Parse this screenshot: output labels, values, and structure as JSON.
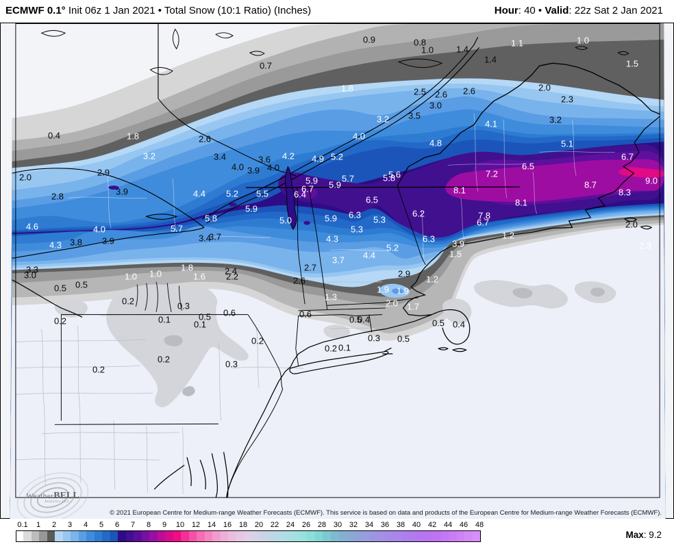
{
  "header": {
    "title_model": "ECMWF 0.1°",
    "title_rest": " Init 06z 1 Jan 2021 • Total Snow (10:1 Ratio) (Inches)",
    "hour_label": "Hour",
    "hour_value": ": 40",
    "sep": " • ",
    "valid_label": "Valid",
    "valid_value": ": 22z Sat 2 Jan 2021"
  },
  "footer": {
    "copyright": "© 2021 European Centre for Medium-range Weather Forecasts (ECMWF). This service is based on data and products of the European Centre for Medium-range Weather Forecasts (ECMWF)."
  },
  "logo": {
    "part1": "Weather",
    "part2": "BELL",
    "sub": "Analytics LLC"
  },
  "colorbar": {
    "max_label": "Max",
    "max_value": ": 9.2",
    "ticks": [
      "0.1",
      "1",
      "2",
      "3",
      "4",
      "5",
      "6",
      "7",
      "8",
      "9",
      "10",
      "12",
      "14",
      "16",
      "18",
      "20",
      "22",
      "24",
      "26",
      "28",
      "30",
      "32",
      "34",
      "36",
      "38",
      "40",
      "42",
      "44",
      "46",
      "48"
    ],
    "start_color": "#ffffff",
    "segments": [
      [
        "#dcdcdc",
        "#bdbdbd"
      ],
      [
        "#979797",
        "#5b5b5b"
      ],
      [
        "#b3d6f5",
        "#97c6f0"
      ],
      [
        "#7ab4ec",
        "#599de4"
      ],
      [
        "#3f8cdc",
        "#2e7cd2"
      ],
      [
        "#2269c8",
        "#1b55ba"
      ],
      [
        "#2d0c86",
        "#430e90"
      ],
      [
        "#5a0f9c",
        "#7810a4"
      ],
      [
        "#9a0ea6",
        "#bc0c98"
      ],
      [
        "#da0b8b",
        "#f00e83"
      ],
      [
        "#f62e97",
        "#f650a6"
      ],
      [
        "#f66cb5",
        "#f585c2"
      ],
      [
        "#f29ccd",
        "#efaed7"
      ],
      [
        "#ebbddf",
        "#e6c8e3"
      ],
      [
        "#dfd0e7",
        "#d5d3e8"
      ],
      [
        "#cad4e7",
        "#c0d7e7"
      ],
      [
        "#b6dbe7",
        "#addee5"
      ],
      [
        "#a3e0e2",
        "#97e1df"
      ],
      [
        "#8bdeda",
        "#80d6d5"
      ],
      [
        "#7cc9d1",
        "#7cbcd0"
      ],
      [
        "#83b1d2",
        "#8aaad6"
      ],
      [
        "#91a2da",
        "#979cde"
      ],
      [
        "#9d95e2",
        "#a28fe6"
      ],
      [
        "#a789ea",
        "#ab84ec"
      ],
      [
        "#af7eee",
        "#b37af0"
      ],
      [
        "#b775f1",
        "#bb72f2"
      ],
      [
        "#c073f4",
        "#c577f5"
      ],
      [
        "#ca7cf6",
        "#cf82f7"
      ],
      [
        "#d489f8",
        "#d98ff9"
      ]
    ]
  },
  "map": {
    "labels": [
      [
        "0.4",
        78,
        197,
        "b"
      ],
      [
        "0.7",
        387,
        95,
        "b"
      ],
      [
        "0.9",
        538,
        57,
        "b"
      ],
      [
        "0.8",
        612,
        61,
        "b"
      ],
      [
        "1.0",
        623,
        72,
        "b"
      ],
      [
        "1.4",
        674,
        71,
        "b"
      ],
      [
        "1.1",
        754,
        62,
        "w"
      ],
      [
        "1.0",
        850,
        58,
        "w"
      ],
      [
        "1.4",
        715,
        86,
        "b"
      ],
      [
        "1.5",
        922,
        92,
        "w"
      ],
      [
        "1.8",
        193,
        198,
        "w"
      ],
      [
        "1.8",
        506,
        128,
        "w"
      ],
      [
        "2.6",
        298,
        202,
        "b"
      ],
      [
        "2.5",
        612,
        133,
        "b"
      ],
      [
        "2.6",
        643,
        137,
        "b"
      ],
      [
        "3.0",
        635,
        153,
        "b"
      ],
      [
        "3.5",
        604,
        168,
        "b"
      ],
      [
        "3.2",
        558,
        173,
        "w"
      ],
      [
        "2.6",
        684,
        132,
        "b"
      ],
      [
        "2.0",
        794,
        127,
        "b"
      ],
      [
        "2.3",
        827,
        144,
        "b"
      ],
      [
        "3.2",
        810,
        174,
        "b"
      ],
      [
        "3.2",
        217,
        227,
        "w"
      ],
      [
        "3.4",
        320,
        228,
        "b"
      ],
      [
        "2.9",
        150,
        251,
        "b"
      ],
      [
        "2.0",
        36,
        258,
        "b"
      ],
      [
        "2.8",
        83,
        286,
        "b"
      ],
      [
        "3.9",
        177,
        279,
        "b"
      ],
      [
        "3.6",
        385,
        232,
        "b"
      ],
      [
        "4.0",
        346,
        243,
        "b"
      ],
      [
        "3.9",
        369,
        248,
        "b"
      ],
      [
        "4.0",
        398,
        244,
        "b"
      ],
      [
        "4.2",
        420,
        227,
        "w"
      ],
      [
        "4.9",
        463,
        231,
        "w"
      ],
      [
        "5.2",
        491,
        228,
        "w"
      ],
      [
        "4.0",
        523,
        198,
        "w"
      ],
      [
        "4.8",
        635,
        208,
        "w"
      ],
      [
        "4.1",
        716,
        180,
        "w"
      ],
      [
        "5.1",
        827,
        209,
        "w"
      ],
      [
        "6.7",
        915,
        228,
        "w"
      ],
      [
        "4.4",
        290,
        282,
        "w"
      ],
      [
        "4.6",
        46,
        330,
        "w"
      ],
      [
        "4.0",
        144,
        334,
        "w"
      ],
      [
        "5.7",
        257,
        333,
        "w"
      ],
      [
        "5.8",
        307,
        318,
        "w"
      ],
      [
        "5.2",
        338,
        282,
        "w"
      ],
      [
        "5.5",
        382,
        282,
        "w"
      ],
      [
        "5.9",
        366,
        304,
        "w"
      ],
      [
        "5.0",
        416,
        321,
        "w"
      ],
      [
        "5.9",
        454,
        263,
        "w"
      ],
      [
        "6.7",
        448,
        275,
        "w"
      ],
      [
        "6.4",
        437,
        283,
        "w"
      ],
      [
        "5.9",
        488,
        269,
        "w"
      ],
      [
        "5.7",
        507,
        260,
        "w"
      ],
      [
        "5.6",
        575,
        254,
        "w"
      ],
      [
        "5.8",
        567,
        259,
        "w"
      ],
      [
        "6.5",
        542,
        291,
        "w"
      ],
      [
        "6.3",
        517,
        313,
        "w"
      ],
      [
        "5.9",
        482,
        318,
        "w"
      ],
      [
        "5.3",
        553,
        320,
        "w"
      ],
      [
        "5.3",
        520,
        334,
        "w"
      ],
      [
        "6.5",
        770,
        242,
        "w"
      ],
      [
        "7.2",
        717,
        253,
        "w"
      ],
      [
        "8.1",
        670,
        277,
        "w"
      ],
      [
        "8.1",
        760,
        295,
        "w"
      ],
      [
        "8.7",
        861,
        269,
        "w"
      ],
      [
        "9.0",
        950,
        263,
        "w"
      ],
      [
        "8.3",
        911,
        280,
        "w"
      ],
      [
        "6.2",
        610,
        311,
        "w"
      ],
      [
        "7.8",
        706,
        314,
        "w"
      ],
      [
        "6.7",
        704,
        324,
        "w"
      ],
      [
        "6.3",
        625,
        348,
        "w"
      ],
      [
        "4.3",
        80,
        357,
        "w"
      ],
      [
        "3.8",
        110,
        353,
        "b"
      ],
      [
        "3.9",
        157,
        351,
        "b"
      ],
      [
        "3.4",
        298,
        347,
        "b"
      ],
      [
        "3.7",
        313,
        345,
        "b"
      ],
      [
        "2.7",
        452,
        390,
        "b"
      ],
      [
        "3.7",
        493,
        379,
        "w"
      ],
      [
        "4.3",
        484,
        348,
        "w"
      ],
      [
        "4.4",
        538,
        372,
        "w"
      ],
      [
        "5.2",
        572,
        361,
        "w"
      ],
      [
        "3.9",
        668,
        355,
        "w"
      ],
      [
        "1.5",
        664,
        370,
        "w"
      ],
      [
        "3.3",
        46,
        393,
        "b"
      ],
      [
        "3.0",
        43,
        401,
        "b"
      ],
      [
        "2.4",
        336,
        395,
        "b"
      ],
      [
        "2.2",
        338,
        403,
        "b"
      ],
      [
        "2.6",
        436,
        409,
        "b"
      ],
      [
        "2.9",
        589,
        399,
        "b"
      ],
      [
        "2.0",
        921,
        327,
        "b"
      ],
      [
        "2.3",
        941,
        358,
        "w"
      ],
      [
        "1.2",
        741,
        343,
        "w"
      ],
      [
        "0.5",
        87,
        420,
        "b"
      ],
      [
        "0.5",
        118,
        415,
        "b"
      ],
      [
        "1.0",
        190,
        403,
        "w"
      ],
      [
        "1.0",
        226,
        399,
        "w"
      ],
      [
        "1.8",
        272,
        390,
        "w"
      ],
      [
        "1.6",
        290,
        403,
        "w"
      ],
      [
        "1.9",
        558,
        422,
        "w"
      ],
      [
        "1.9",
        587,
        424,
        "w"
      ],
      [
        "1.3",
        482,
        433,
        "w"
      ],
      [
        "2.0",
        571,
        442,
        "w"
      ],
      [
        "1.7",
        602,
        447,
        "w"
      ],
      [
        "1.2",
        630,
        407,
        "w"
      ],
      [
        "0.6",
        334,
        456,
        "b"
      ],
      [
        "0.6",
        445,
        458,
        "b"
      ],
      [
        "0.5",
        518,
        466,
        "b"
      ],
      [
        "0.4",
        530,
        466,
        "b"
      ],
      [
        "0.5",
        639,
        471,
        "b"
      ],
      [
        "0.4",
        669,
        473,
        "b"
      ],
      [
        "0.5",
        588,
        494,
        "b"
      ],
      [
        "0.2",
        186,
        439,
        "b"
      ],
      [
        "0.3",
        267,
        446,
        "b"
      ],
      [
        "0.1",
        239,
        466,
        "b"
      ],
      [
        "0.5",
        298,
        462,
        "b"
      ],
      [
        "0.1",
        291,
        473,
        "b"
      ],
      [
        "0.2",
        87,
        468,
        "b"
      ],
      [
        "0.2",
        238,
        524,
        "b"
      ],
      [
        "0.2",
        143,
        539,
        "b"
      ],
      [
        "0.2",
        375,
        497,
        "b"
      ],
      [
        "0.3",
        545,
        493,
        "b"
      ],
      [
        "0.2",
        482,
        508,
        "b"
      ],
      [
        "0.1",
        502,
        507,
        "b"
      ],
      [
        "0.3",
        337,
        531,
        "b"
      ]
    ]
  }
}
